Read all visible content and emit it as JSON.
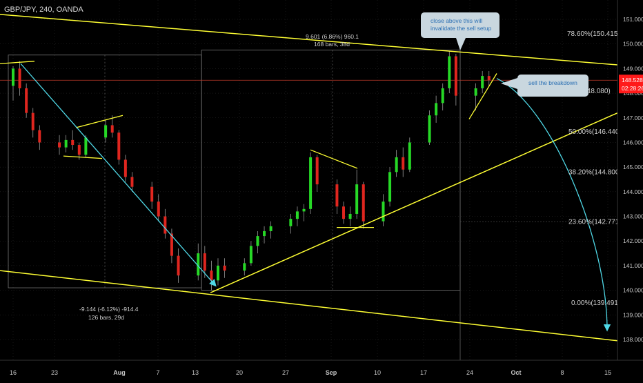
{
  "symbol_title": "GBP/JPY, 240, OANDA",
  "colors": {
    "background": "#000000",
    "bull": "#26d926",
    "bear": "#e0261f",
    "wick": "#9a9a9a",
    "trendline": "#ffff33",
    "cyan": "#4fd8e6",
    "price_line": "#c0392b",
    "price_badge": "#ff1a1a",
    "box_border": "#777777",
    "grid": "#333333",
    "axis_text": "#c8c8c8",
    "callout_bg": "#c9d7df",
    "callout_text": "#2a6fb3"
  },
  "chart_data": {
    "type": "candlestick",
    "symbol": "GBP/JPY",
    "timeframe": "240",
    "broker": "OANDA",
    "ylim": [
      137.9,
      151.4
    ],
    "y_ticks": [
      138.0,
      139.0,
      140.0,
      141.0,
      142.0,
      143.0,
      144.0,
      145.0,
      146.0,
      147.0,
      148.0,
      149.0,
      150.0,
      151.0
    ],
    "x_ticks": [
      "16",
      "23",
      "Aug",
      "7",
      "13",
      "20",
      "27",
      "Sep",
      "10",
      "17",
      "24",
      "Oct",
      "8",
      "15"
    ],
    "candles_sampled": [
      {
        "date": "Jul 16",
        "o": 148.3,
        "h": 149.1,
        "l": 147.7,
        "c": 149.0
      },
      {
        "date": "Jul 17",
        "o": 149.0,
        "h": 149.3,
        "l": 147.9,
        "c": 148.2
      },
      {
        "date": "Jul 18",
        "o": 148.2,
        "h": 148.4,
        "l": 147.0,
        "c": 147.2
      },
      {
        "date": "Jul 19",
        "o": 147.2,
        "h": 147.4,
        "l": 146.2,
        "c": 146.5
      },
      {
        "date": "Jul 20",
        "o": 146.5,
        "h": 146.7,
        "l": 145.7,
        "c": 146.0
      },
      {
        "date": "Jul 23",
        "o": 146.0,
        "h": 146.3,
        "l": 145.5,
        "c": 145.8
      },
      {
        "date": "Jul 24",
        "o": 145.8,
        "h": 146.3,
        "l": 145.6,
        "c": 146.1
      },
      {
        "date": "Jul 25",
        "o": 146.1,
        "h": 146.5,
        "l": 145.7,
        "c": 145.9
      },
      {
        "date": "Jul 26",
        "o": 145.9,
        "h": 146.0,
        "l": 145.3,
        "c": 145.5
      },
      {
        "date": "Jul 27",
        "o": 145.5,
        "h": 146.3,
        "l": 145.4,
        "c": 146.2
      },
      {
        "date": "Jul 30",
        "o": 146.2,
        "h": 146.9,
        "l": 146.0,
        "c": 146.7
      },
      {
        "date": "Jul 31",
        "o": 146.7,
        "h": 147.1,
        "l": 146.2,
        "c": 146.4
      },
      {
        "date": "Aug 1",
        "o": 146.4,
        "h": 146.5,
        "l": 145.1,
        "c": 145.3
      },
      {
        "date": "Aug 2",
        "o": 145.3,
        "h": 145.5,
        "l": 144.4,
        "c": 144.6
      },
      {
        "date": "Aug 3",
        "o": 144.6,
        "h": 144.8,
        "l": 144.0,
        "c": 144.2
      },
      {
        "date": "Aug 6",
        "o": 144.2,
        "h": 144.4,
        "l": 143.3,
        "c": 143.6
      },
      {
        "date": "Aug 7",
        "o": 143.6,
        "h": 143.9,
        "l": 142.8,
        "c": 143.0
      },
      {
        "date": "Aug 8",
        "o": 143.0,
        "h": 143.3,
        "l": 142.1,
        "c": 142.3
      },
      {
        "date": "Aug 9",
        "o": 142.3,
        "h": 142.5,
        "l": 141.1,
        "c": 141.4
      },
      {
        "date": "Aug 10",
        "o": 141.4,
        "h": 141.7,
        "l": 140.3,
        "c": 140.6
      },
      {
        "date": "Aug 13",
        "o": 140.6,
        "h": 141.9,
        "l": 140.4,
        "c": 141.5
      },
      {
        "date": "Aug 14",
        "o": 141.5,
        "h": 141.8,
        "l": 140.5,
        "c": 140.8
      },
      {
        "date": "Aug 15",
        "o": 140.8,
        "h": 141.2,
        "l": 140.0,
        "c": 140.4
      },
      {
        "date": "Aug 16",
        "o": 140.4,
        "h": 141.3,
        "l": 140.2,
        "c": 141.0
      },
      {
        "date": "Aug 17",
        "o": 141.0,
        "h": 141.3,
        "l": 140.5,
        "c": 140.8
      },
      {
        "date": "Aug 20",
        "o": 140.8,
        "h": 141.3,
        "l": 140.6,
        "c": 141.1
      },
      {
        "date": "Aug 21",
        "o": 141.1,
        "h": 142.0,
        "l": 141.0,
        "c": 141.8
      },
      {
        "date": "Aug 22",
        "o": 141.8,
        "h": 142.4,
        "l": 141.5,
        "c": 142.2
      },
      {
        "date": "Aug 23",
        "o": 142.2,
        "h": 142.6,
        "l": 141.9,
        "c": 142.4
      },
      {
        "date": "Aug 24",
        "o": 142.4,
        "h": 142.8,
        "l": 142.1,
        "c": 142.6
      },
      {
        "date": "Aug 27",
        "o": 142.6,
        "h": 143.1,
        "l": 142.3,
        "c": 142.9
      },
      {
        "date": "Aug 28",
        "o": 142.9,
        "h": 143.4,
        "l": 142.6,
        "c": 143.2
      },
      {
        "date": "Aug 29",
        "o": 143.2,
        "h": 143.5,
        "l": 142.8,
        "c": 143.3
      },
      {
        "date": "Aug 30",
        "o": 143.3,
        "h": 145.6,
        "l": 143.1,
        "c": 145.4
      },
      {
        "date": "Aug 31",
        "o": 145.4,
        "h": 145.5,
        "l": 144.0,
        "c": 144.3
      },
      {
        "date": "Sep 3",
        "o": 144.3,
        "h": 144.5,
        "l": 143.1,
        "c": 143.4
      },
      {
        "date": "Sep 4",
        "o": 143.4,
        "h": 143.6,
        "l": 142.7,
        "c": 142.9
      },
      {
        "date": "Sep 5",
        "o": 142.9,
        "h": 143.4,
        "l": 142.6,
        "c": 143.1
      },
      {
        "date": "Sep 6",
        "o": 143.1,
        "h": 144.9,
        "l": 142.9,
        "c": 144.3
      },
      {
        "date": "Sep 7",
        "o": 144.3,
        "h": 144.4,
        "l": 142.5,
        "c": 142.8
      },
      {
        "date": "Sep 10",
        "o": 142.8,
        "h": 143.9,
        "l": 142.6,
        "c": 143.6
      },
      {
        "date": "Sep 11",
        "o": 143.6,
        "h": 145.0,
        "l": 143.4,
        "c": 144.8
      },
      {
        "date": "Sep 12",
        "o": 144.8,
        "h": 145.7,
        "l": 144.6,
        "c": 145.4
      },
      {
        "date": "Sep 13",
        "o": 145.4,
        "h": 145.8,
        "l": 144.6,
        "c": 144.9
      },
      {
        "date": "Sep 14",
        "o": 144.9,
        "h": 146.2,
        "l": 144.8,
        "c": 146.0
      },
      {
        "date": "Sep 17",
        "o": 146.0,
        "h": 147.3,
        "l": 145.9,
        "c": 147.1
      },
      {
        "date": "Sep 18",
        "o": 147.1,
        "h": 147.9,
        "l": 146.8,
        "c": 147.6
      },
      {
        "date": "Sep 19",
        "o": 147.6,
        "h": 148.4,
        "l": 147.3,
        "c": 148.2
      },
      {
        "date": "Sep 20",
        "o": 148.2,
        "h": 149.7,
        "l": 148.0,
        "c": 149.5
      },
      {
        "date": "Sep 21",
        "o": 149.5,
        "h": 149.6,
        "l": 147.5,
        "c": 147.9
      },
      {
        "date": "Sep 24",
        "o": 147.9,
        "h": 148.4,
        "l": 147.3,
        "c": 148.2
      },
      {
        "date": "Sep 25",
        "o": 148.2,
        "h": 148.9,
        "l": 148.0,
        "c": 148.7
      },
      {
        "date": "Sep 26",
        "o": 148.7,
        "h": 148.9,
        "l": 148.3,
        "c": 148.528
      }
    ],
    "last_price": "148.528",
    "countdown": "02:28:26",
    "fibonacci": [
      {
        "level": "0.00%",
        "price": 139.491,
        "label": "0.00%(139.491)"
      },
      {
        "level": "23.60%",
        "price": 142.771,
        "label": "23.60%(142.771)"
      },
      {
        "level": "38.20%",
        "price": 144.8,
        "label": "38.20%(144.800)"
      },
      {
        "level": "50.00%",
        "price": 146.44,
        "label": "50.00%(146.440)"
      },
      {
        "level": "61.80%",
        "price": 148.08,
        "label": "61.80%(148.080)"
      },
      {
        "level": "78.60%",
        "price": 150.415,
        "label": "78.60%(150.415)"
      }
    ],
    "measures": [
      {
        "line1": "9.601 (6.86%) 960.1",
        "line2": "168 bars, 38d"
      },
      {
        "line1": "-9.144 (-6.12%) -914.4",
        "line2": "126 bars, 29d"
      }
    ],
    "callouts": [
      {
        "line1": "close above this will",
        "line2": "invalidate the sell setup"
      },
      {
        "text": "sell the breakdown"
      }
    ]
  }
}
